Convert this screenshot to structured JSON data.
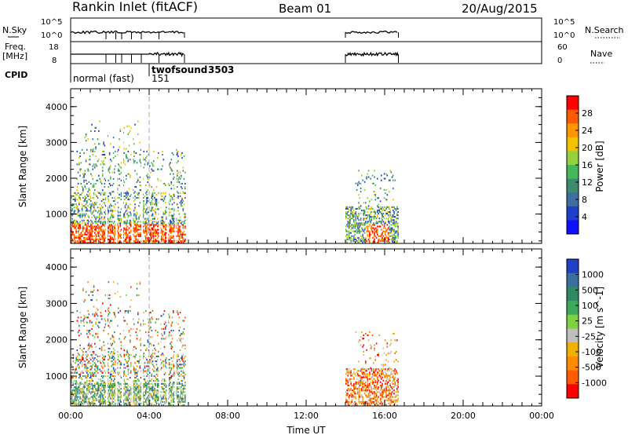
{
  "header": {
    "station": "Rankin Inlet (fitACF)",
    "beam": "Beam 01",
    "date": "20/Aug/2015"
  },
  "strips": {
    "nsky_label": "N.Sky",
    "nsky_ticks": [
      "10^5",
      "10^0"
    ],
    "nsearch_label": "N.Search",
    "freq_label": "Freq.",
    "freq_unit": "[MHz]",
    "freq_ticks": [
      "18",
      "8"
    ],
    "nave_ticks": [
      "60",
      "0"
    ],
    "nave_label": "Nave",
    "cpid_label": "CPID",
    "modes": [
      {
        "name": "normal (fast)",
        "cpid": "151",
        "start_h": 0.0
      },
      {
        "name": "twofsound",
        "cpid": "3503",
        "start_h": 4.0
      }
    ]
  },
  "colorbars": {
    "power": {
      "label": "Power [dB]",
      "ticks": [
        "28",
        "24",
        "20",
        "16",
        "12",
        "8",
        "4"
      ],
      "colors": [
        "#ff0000",
        "#ff5a00",
        "#ff9600",
        "#f2c200",
        "#93d23b",
        "#43b85a",
        "#3d8c6e",
        "#3f6fa0",
        "#1f3fc8",
        "#1010ff"
      ]
    },
    "velocity": {
      "label": "Velocity [m s^-1]",
      "ticks": [
        "1000",
        "500",
        "100",
        "25",
        "-25",
        "-100",
        "-500",
        "-1000"
      ],
      "colors": [
        "#2040c8",
        "#3a6fa0",
        "#2f8a62",
        "#3caa5a",
        "#7ed23e",
        "#bebebe",
        "#f0b000",
        "#ff8c00",
        "#ff5a00",
        "#ff0000"
      ]
    }
  },
  "chart_data": [
    {
      "type": "heatmap",
      "name": "power",
      "ylabel": "Slant Range [km]",
      "xlim": [
        0,
        24
      ],
      "ylim": [
        180,
        4500
      ],
      "yticks": [
        1000,
        2000,
        3000,
        4000
      ],
      "ytick_labels": [
        "1000",
        "2000",
        "3000",
        "4000"
      ],
      "data_ranges_h": [
        [
          0.0,
          5.8
        ],
        [
          14.0,
          16.7
        ]
      ],
      "mode_change_h": 4.0
    },
    {
      "type": "heatmap",
      "name": "velocity",
      "ylabel": "Slant Range [km]",
      "xlabel": "Time UT",
      "xlim": [
        0,
        24
      ],
      "ylim": [
        180,
        4500
      ],
      "yticks": [
        1000,
        2000,
        3000,
        4000
      ],
      "ytick_labels": [
        "1000",
        "2000",
        "3000",
        "4000"
      ],
      "xticks": [
        0,
        4,
        8,
        12,
        16,
        20,
        24
      ],
      "xtick_labels": [
        "00:00",
        "04:00",
        "08:00",
        "12:00",
        "16:00",
        "20:00",
        "00:00"
      ],
      "data_ranges_h": [
        [
          0.0,
          5.8
        ],
        [
          14.0,
          16.7
        ]
      ],
      "mode_change_h": 4.0
    }
  ]
}
